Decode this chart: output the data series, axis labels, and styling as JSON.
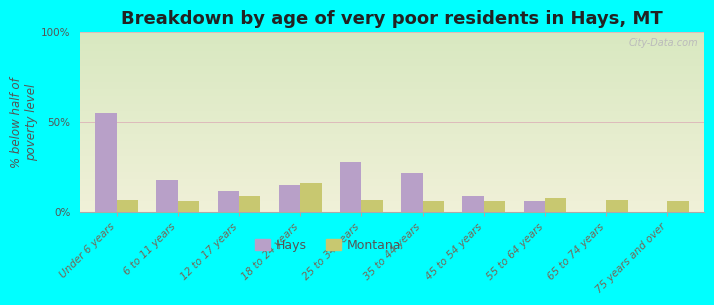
{
  "title": "Breakdown by age of very poor residents in Hays, MT",
  "ylabel": "% below half of\npoverty level",
  "categories": [
    "Under 6 years",
    "6 to 11 years",
    "12 to 17 years",
    "18 to 24 years",
    "25 to 34 years",
    "35 to 44 years",
    "45 to 54 years",
    "55 to 64 years",
    "65 to 74 years",
    "75 years and over"
  ],
  "hays_values": [
    55,
    18,
    12,
    15,
    28,
    22,
    9,
    6,
    0,
    0
  ],
  "montana_values": [
    7,
    6,
    9,
    16,
    7,
    6,
    6,
    8,
    7,
    6
  ],
  "hays_color": "#b8a0c8",
  "montana_color": "#c8c870",
  "outer_background": "#00ffff",
  "bg_top_color": "#d8e8c0",
  "bg_bottom_color": "#f0f0d8",
  "ylim": [
    0,
    100
  ],
  "yticks": [
    0,
    50,
    100
  ],
  "ytick_labels": [
    "0%",
    "50%",
    "100%"
  ],
  "bar_width": 0.35,
  "title_fontsize": 13,
  "axis_label_fontsize": 8.5,
  "tick_fontsize": 7.5,
  "legend_fontsize": 9,
  "watermark": "City-Data.com"
}
